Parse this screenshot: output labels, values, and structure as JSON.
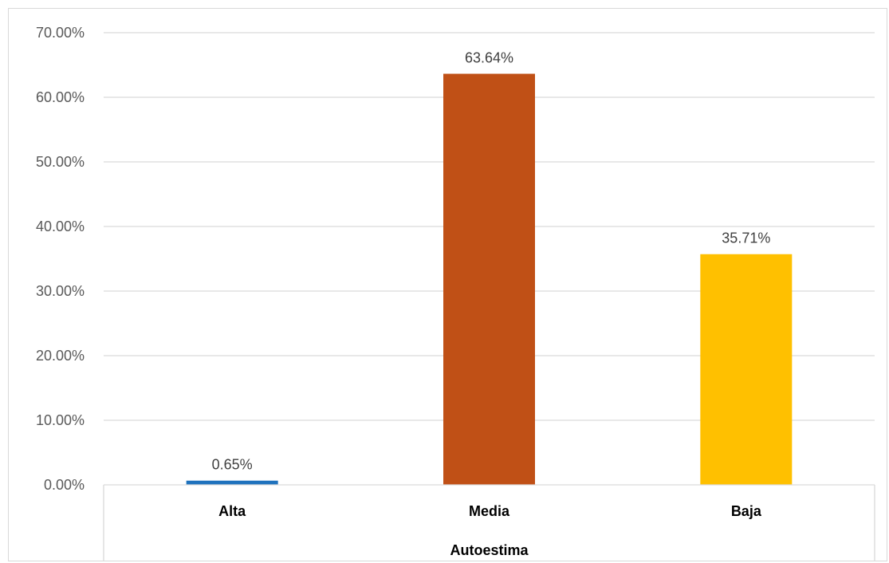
{
  "chart_data": {
    "type": "bar",
    "categories": [
      "Alta",
      "Media",
      "Baja"
    ],
    "values": [
      0.65,
      63.64,
      35.71
    ],
    "data_labels": [
      "0.65%",
      "63.64%",
      "35.71%"
    ],
    "colors": [
      "#1f72bd",
      "#c05016",
      "#ffc000"
    ],
    "ylim": [
      0,
      70
    ],
    "yticks": [
      0,
      10,
      20,
      30,
      40,
      50,
      60,
      70
    ],
    "ytick_labels": [
      "0.00%",
      "10.00%",
      "20.00%",
      "30.00%",
      "40.00%",
      "50.00%",
      "60.00%",
      "70.00%"
    ],
    "xlabel": "Autoestima",
    "ylabel": "",
    "title": "",
    "grid": true,
    "gridline_color": "#d9d9d9"
  }
}
